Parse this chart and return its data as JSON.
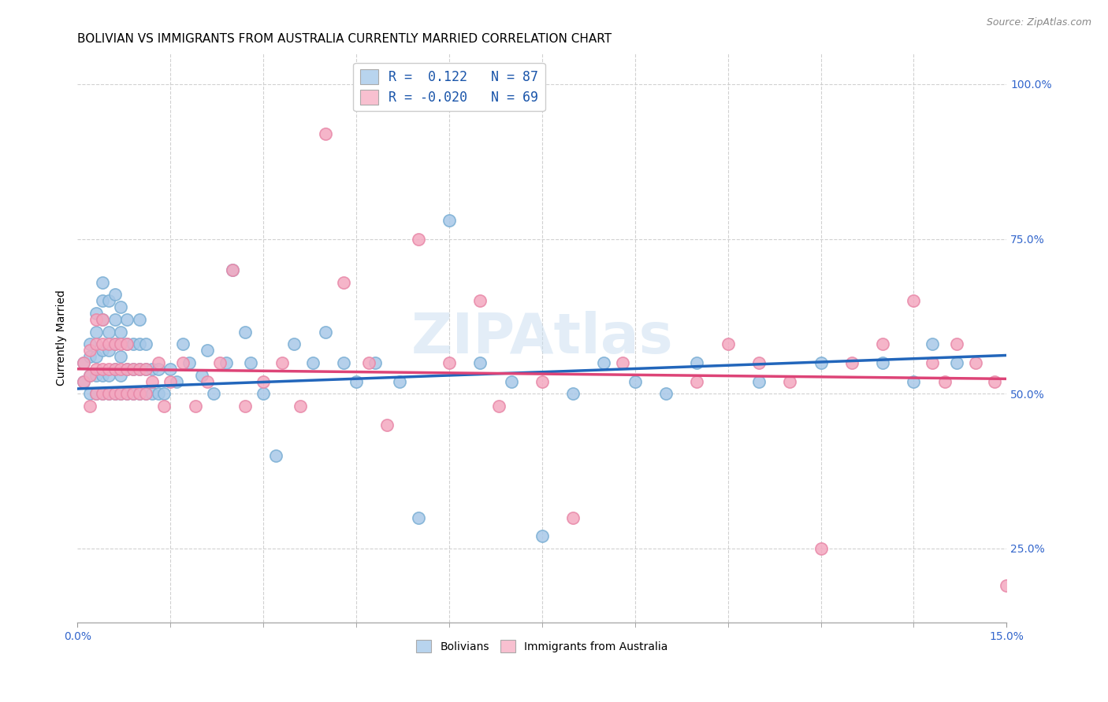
{
  "title": "BOLIVIAN VS IMMIGRANTS FROM AUSTRALIA CURRENTLY MARRIED CORRELATION CHART",
  "source": "Source: ZipAtlas.com",
  "ylabel": "Currently Married",
  "x_range": [
    0.0,
    0.15
  ],
  "y_range": [
    0.13,
    1.05
  ],
  "y_ticks": [
    0.25,
    0.5,
    0.75,
    1.0
  ],
  "y_tick_labels": [
    "25.0%",
    "50.0%",
    "75.0%",
    "100.0%"
  ],
  "x_tick_minor_count": 10,
  "legend_line1": "R =  0.122   N = 87",
  "legend_line2": "R = -0.020   N = 69",
  "legend_labels": [
    "Bolivians",
    "Immigrants from Australia"
  ],
  "blue_color": "#a8c8e8",
  "pink_color": "#f4a8c0",
  "blue_marker_edge": "#7bafd4",
  "pink_marker_edge": "#e888a8",
  "blue_line_color": "#2266bb",
  "pink_line_color": "#dd4477",
  "legend_blue_fill": "#b8d4ee",
  "legend_pink_fill": "#f8c0d0",
  "title_fontsize": 11,
  "source_fontsize": 9,
  "axis_label_fontsize": 10,
  "tick_fontsize": 10,
  "tick_color": "#3366cc",
  "watermark_text": "ZIPAtlas",
  "watermark_color": "#c8ddf0",
  "blue_scatter_x": [
    0.001,
    0.001,
    0.002,
    0.002,
    0.002,
    0.002,
    0.003,
    0.003,
    0.003,
    0.003,
    0.003,
    0.004,
    0.004,
    0.004,
    0.004,
    0.004,
    0.004,
    0.005,
    0.005,
    0.005,
    0.005,
    0.005,
    0.006,
    0.006,
    0.006,
    0.006,
    0.006,
    0.007,
    0.007,
    0.007,
    0.007,
    0.007,
    0.008,
    0.008,
    0.008,
    0.008,
    0.009,
    0.009,
    0.009,
    0.01,
    0.01,
    0.01,
    0.01,
    0.011,
    0.011,
    0.011,
    0.012,
    0.012,
    0.013,
    0.013,
    0.014,
    0.015,
    0.016,
    0.017,
    0.018,
    0.02,
    0.021,
    0.022,
    0.024,
    0.025,
    0.027,
    0.028,
    0.03,
    0.032,
    0.035,
    0.038,
    0.04,
    0.043,
    0.045,
    0.048,
    0.052,
    0.055,
    0.06,
    0.065,
    0.07,
    0.075,
    0.08,
    0.085,
    0.09,
    0.095,
    0.1,
    0.11,
    0.12,
    0.13,
    0.135,
    0.138,
    0.142
  ],
  "blue_scatter_y": [
    0.52,
    0.55,
    0.5,
    0.53,
    0.56,
    0.58,
    0.5,
    0.53,
    0.56,
    0.6,
    0.63,
    0.5,
    0.53,
    0.57,
    0.62,
    0.65,
    0.68,
    0.5,
    0.53,
    0.57,
    0.6,
    0.65,
    0.5,
    0.54,
    0.58,
    0.62,
    0.66,
    0.5,
    0.53,
    0.56,
    0.6,
    0.64,
    0.5,
    0.54,
    0.58,
    0.62,
    0.5,
    0.54,
    0.58,
    0.5,
    0.54,
    0.58,
    0.62,
    0.5,
    0.54,
    0.58,
    0.5,
    0.54,
    0.5,
    0.54,
    0.5,
    0.54,
    0.52,
    0.58,
    0.55,
    0.53,
    0.57,
    0.5,
    0.55,
    0.7,
    0.6,
    0.55,
    0.5,
    0.4,
    0.58,
    0.55,
    0.6,
    0.55,
    0.52,
    0.55,
    0.52,
    0.3,
    0.78,
    0.55,
    0.52,
    0.27,
    0.5,
    0.55,
    0.52,
    0.5,
    0.55,
    0.52,
    0.55,
    0.55,
    0.52,
    0.58,
    0.55
  ],
  "pink_scatter_x": [
    0.001,
    0.001,
    0.002,
    0.002,
    0.002,
    0.003,
    0.003,
    0.003,
    0.003,
    0.004,
    0.004,
    0.004,
    0.004,
    0.005,
    0.005,
    0.005,
    0.006,
    0.006,
    0.006,
    0.007,
    0.007,
    0.007,
    0.008,
    0.008,
    0.008,
    0.009,
    0.009,
    0.01,
    0.01,
    0.011,
    0.011,
    0.012,
    0.013,
    0.014,
    0.015,
    0.017,
    0.019,
    0.021,
    0.023,
    0.025,
    0.027,
    0.03,
    0.033,
    0.036,
    0.04,
    0.043,
    0.047,
    0.05,
    0.055,
    0.06,
    0.065,
    0.068,
    0.075,
    0.08,
    0.088,
    0.1,
    0.105,
    0.11,
    0.115,
    0.12,
    0.125,
    0.13,
    0.135,
    0.138,
    0.14,
    0.142,
    0.145,
    0.148,
    0.15
  ],
  "pink_scatter_y": [
    0.52,
    0.55,
    0.48,
    0.53,
    0.57,
    0.5,
    0.54,
    0.58,
    0.62,
    0.5,
    0.54,
    0.58,
    0.62,
    0.5,
    0.54,
    0.58,
    0.5,
    0.54,
    0.58,
    0.5,
    0.54,
    0.58,
    0.5,
    0.54,
    0.58,
    0.5,
    0.54,
    0.5,
    0.54,
    0.5,
    0.54,
    0.52,
    0.55,
    0.48,
    0.52,
    0.55,
    0.48,
    0.52,
    0.55,
    0.7,
    0.48,
    0.52,
    0.55,
    0.48,
    0.92,
    0.68,
    0.55,
    0.45,
    0.75,
    0.55,
    0.65,
    0.48,
    0.52,
    0.3,
    0.55,
    0.52,
    0.58,
    0.55,
    0.52,
    0.25,
    0.55,
    0.58,
    0.65,
    0.55,
    0.52,
    0.58,
    0.55,
    0.52,
    0.19
  ],
  "blue_trend_x": [
    0.0,
    0.15
  ],
  "blue_trend_y": [
    0.508,
    0.562
  ],
  "pink_trend_x": [
    0.0,
    0.15
  ],
  "pink_trend_y": [
    0.54,
    0.524
  ]
}
